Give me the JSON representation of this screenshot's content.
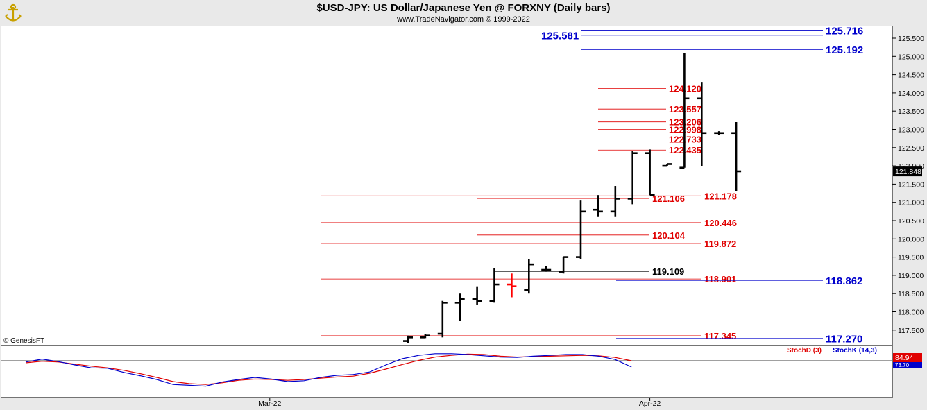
{
  "header": {
    "title": "$USD-JPY:  US Dollar/Japanese Yen @ FORXNY  (Daily bars)",
    "subtitle": "www.TradeNavigator.com © 1999-2022"
  },
  "copyright": "© GenesisFT",
  "colors": {
    "bars": "#000000",
    "highlight_bar": "#ff0000",
    "red_level": "#e00000",
    "blue_level": "#0000cc",
    "black_level": "#000000",
    "stoch_d": "#e00000",
    "stoch_k": "#0000cc"
  },
  "chart_data": [
    {
      "type": "ohlc",
      "title": "$USD-JPY:  US Dollar/Japanese Yen @ FORXNY  (Daily bars)",
      "ylim": [
        117.1,
        125.85
      ],
      "y_ticks": [
        "117.500",
        "118.000",
        "118.500",
        "119.000",
        "119.500",
        "120.000",
        "120.500",
        "121.000",
        "121.500",
        "122.000",
        "122.500",
        "123.000",
        "123.500",
        "124.000",
        "124.500",
        "125.000",
        "125.500"
      ],
      "x_labels": [
        {
          "label": "Mar-22",
          "index": -8
        },
        {
          "label": "Apr-22",
          "index": 14
        }
      ],
      "last_price": "121.848",
      "bars": [
        {
          "o": 117.2,
          "h": 117.35,
          "l": 117.15,
          "c": 117.3,
          "highlight": false
        },
        {
          "o": 117.3,
          "h": 117.4,
          "l": 117.28,
          "c": 117.35,
          "highlight": false
        },
        {
          "o": 117.4,
          "h": 118.3,
          "l": 117.3,
          "c": 118.25,
          "highlight": false
        },
        {
          "o": 118.25,
          "h": 118.5,
          "l": 117.75,
          "c": 118.35,
          "highlight": false
        },
        {
          "o": 118.35,
          "h": 118.7,
          "l": 118.2,
          "c": 118.3,
          "highlight": false
        },
        {
          "o": 118.3,
          "h": 119.2,
          "l": 118.25,
          "c": 118.75,
          "highlight": false
        },
        {
          "o": 118.75,
          "h": 119.05,
          "l": 118.4,
          "c": 118.7,
          "highlight": true
        },
        {
          "o": 118.6,
          "h": 119.45,
          "l": 118.5,
          "c": 119.3,
          "highlight": false
        },
        {
          "o": 119.15,
          "h": 119.25,
          "l": 119.1,
          "c": 119.15,
          "highlight": false
        },
        {
          "o": 119.1,
          "h": 119.5,
          "l": 119.05,
          "c": 119.5,
          "highlight": false
        },
        {
          "o": 119.5,
          "h": 121.05,
          "l": 119.45,
          "c": 120.75,
          "highlight": false
        },
        {
          "o": 120.8,
          "h": 121.2,
          "l": 120.6,
          "c": 120.75,
          "highlight": false
        },
        {
          "o": 120.75,
          "h": 121.45,
          "l": 120.6,
          "c": 121.1,
          "highlight": false
        },
        {
          "o": 121.1,
          "h": 122.4,
          "l": 120.95,
          "c": 122.35,
          "highlight": false
        },
        {
          "o": 122.35,
          "h": 122.45,
          "l": 121.2,
          "c": 121.2,
          "highlight": false
        },
        {
          "o": 122.0,
          "h": 122.05,
          "l": 122.0,
          "c": 122.05,
          "highlight": false
        },
        {
          "o": 121.95,
          "h": 125.1,
          "l": 121.95,
          "c": 123.85,
          "highlight": false
        },
        {
          "o": 123.85,
          "h": 124.3,
          "l": 122.0,
          "c": 122.9,
          "highlight": false
        },
        {
          "o": 122.9,
          "h": 122.95,
          "l": 122.85,
          "c": 122.9,
          "highlight": false
        },
        {
          "o": 122.9,
          "h": 123.2,
          "l": 121.3,
          "c": 121.85,
          "highlight": false
        }
      ],
      "levels": [
        {
          "label": "125.716",
          "color": "blue"
        },
        {
          "label": "125.581",
          "color": "blue"
        },
        {
          "label": "125.192",
          "color": "blue"
        },
        {
          "label": "124.120",
          "color": "red"
        },
        {
          "label": "123.557",
          "color": "red"
        },
        {
          "label": "123.206",
          "color": "red"
        },
        {
          "label": "122.998",
          "color": "red"
        },
        {
          "label": "122.733",
          "color": "red"
        },
        {
          "label": "122.435",
          "color": "red"
        },
        {
          "label": "121.178",
          "color": "red"
        },
        {
          "label": "121.106",
          "color": "red"
        },
        {
          "label": "120.446",
          "color": "red"
        },
        {
          "label": "120.104",
          "color": "red"
        },
        {
          "label": "119.872",
          "color": "red"
        },
        {
          "label": "119.109",
          "color": "black"
        },
        {
          "label": "118.901",
          "color": "red"
        },
        {
          "label": "118.862",
          "color": "blue"
        },
        {
          "label": "117.345",
          "color": "red"
        },
        {
          "label": "117.270",
          "color": "blue"
        }
      ]
    },
    {
      "type": "line",
      "title": "",
      "legend": [
        "StochD (3)",
        "StochK (14,3)"
      ],
      "ylim": [
        0,
        100
      ],
      "value_labels": [
        "84.94",
        "73.70"
      ],
      "series": [
        {
          "name": "StochD (3)",
          "values": [
            70,
            74,
            72,
            67,
            62,
            58,
            52,
            44,
            35,
            25,
            20,
            18,
            22,
            28,
            31,
            30,
            28,
            30,
            33,
            36,
            38,
            45,
            55,
            66,
            76,
            84,
            88,
            91,
            90,
            86,
            84,
            85,
            86,
            87,
            88,
            87,
            83,
            75
          ]
        },
        {
          "name": "StochK (14,3)",
          "values": [
            72,
            79,
            73,
            65,
            58,
            57,
            47,
            39,
            30,
            18,
            16,
            14,
            24,
            30,
            35,
            31,
            25,
            27,
            35,
            40,
            42,
            48,
            65,
            80,
            88,
            92,
            92,
            90,
            87,
            84,
            83,
            86,
            88,
            90,
            90,
            86,
            78,
            60
          ]
        }
      ]
    }
  ]
}
